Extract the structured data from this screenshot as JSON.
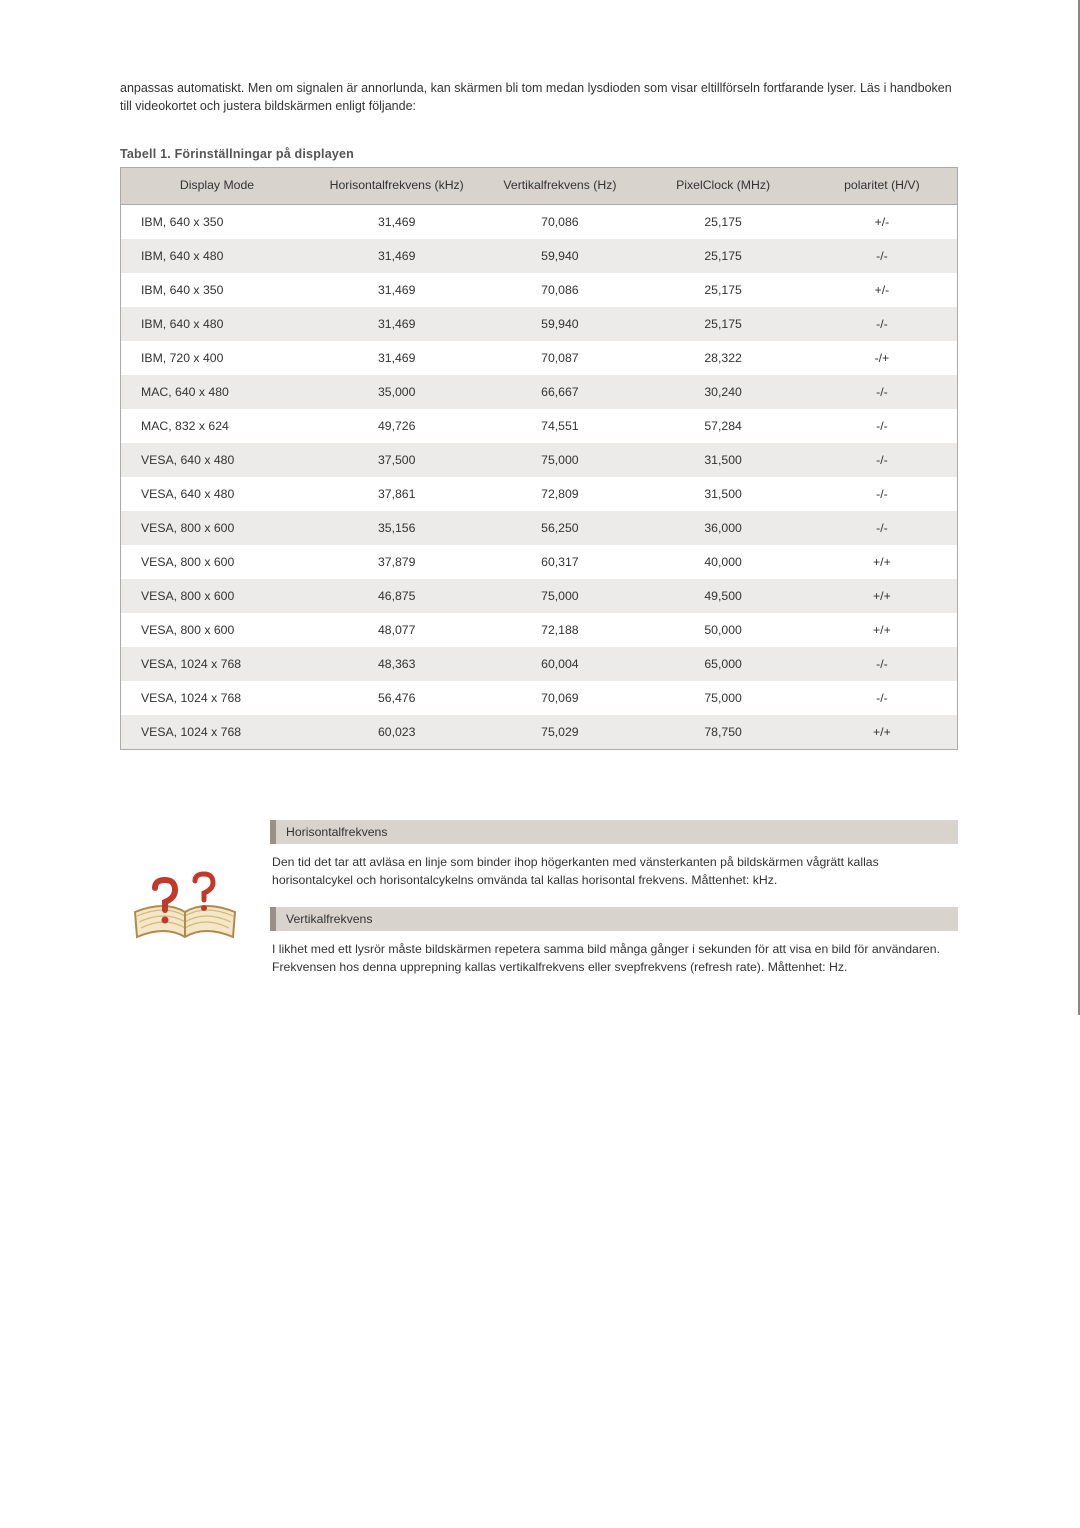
{
  "intro": {
    "paragraph": "anpassas automatiskt. Men om signalen är annorlunda, kan skärmen bli tom medan lysdioden som visar eltillförseln fortfarande lyser. Läs i handboken till videokortet och justera bildskärmen enligt följande:"
  },
  "table": {
    "caption": "Tabell 1. Förinställningar på displayen",
    "columns": [
      "Display Mode",
      "Horisontalfrekvens (kHz)",
      "Vertikalfrekvens (Hz)",
      "PixelClock (MHz)",
      "polaritet (H/V)"
    ],
    "rows": [
      [
        "IBM, 640 x 350",
        "31,469",
        "70,086",
        "25,175",
        "+/-"
      ],
      [
        "IBM, 640 x 480",
        "31,469",
        "59,940",
        "25,175",
        "-/-"
      ],
      [
        "IBM, 640 x 350",
        "31,469",
        "70,086",
        "25,175",
        "+/-"
      ],
      [
        "IBM, 640 x 480",
        "31,469",
        "59,940",
        "25,175",
        "-/-"
      ],
      [
        "IBM, 720 x 400",
        "31,469",
        "70,087",
        "28,322",
        "-/+"
      ],
      [
        "MAC, 640 x 480",
        "35,000",
        "66,667",
        "30,240",
        "-/-"
      ],
      [
        "MAC, 832 x 624",
        "49,726",
        "74,551",
        "57,284",
        "-/-"
      ],
      [
        "VESA, 640 x 480",
        "37,500",
        "75,000",
        "31,500",
        "-/-"
      ],
      [
        "VESA, 640 x 480",
        "37,861",
        "72,809",
        "31,500",
        "-/-"
      ],
      [
        "VESA, 800 x 600",
        "35,156",
        "56,250",
        "36,000",
        "-/-"
      ],
      [
        "VESA, 800 x 600",
        "37,879",
        "60,317",
        "40,000",
        "+/+"
      ],
      [
        "VESA, 800 x 600",
        "46,875",
        "75,000",
        "49,500",
        "+/+"
      ],
      [
        "VESA, 800 x 600",
        "48,077",
        "72,188",
        "50,000",
        "+/+"
      ],
      [
        "VESA, 1024 x 768",
        "48,363",
        "60,004",
        "65,000",
        "-/-"
      ],
      [
        "VESA, 1024 x 768",
        "56,476",
        "70,069",
        "75,000",
        "-/-"
      ],
      [
        "VESA, 1024 x 768",
        "60,023",
        "75,029",
        "78,750",
        "+/+"
      ]
    ],
    "alt_row_bg": "#ecebea",
    "header_bg": "#d8d3cd"
  },
  "info": {
    "sections": [
      {
        "heading": "Horisontalfrekvens",
        "body": "Den tid det tar att avläsa en linje som binder ihop högerkanten med vänsterkanten på bildskärmen vågrätt kallas horisontalcykel och horisontalcykelns omvända tal kallas horisontal frekvens. Måttenhet: kHz."
      },
      {
        "heading": "Vertikalfrekvens",
        "body": "I likhet med ett lysrör måste bildskärmen repetera samma bild många gånger i sekunden för att visa en bild för användaren. Frekvensen hos denna upprepning kallas vertikalfrekvens eller svepfrekvens (refresh rate). Måttenhet: Hz."
      }
    ]
  }
}
